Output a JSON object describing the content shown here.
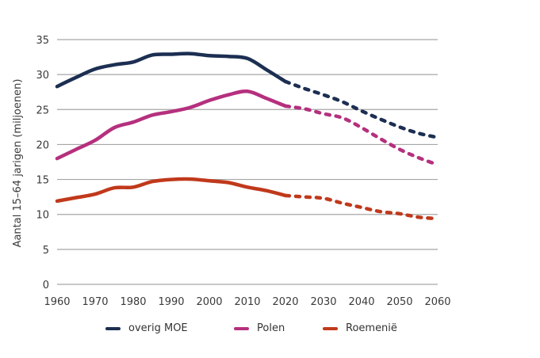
{
  "chart_data": {
    "type": "line",
    "title": "",
    "xlabel": "",
    "ylabel": "Aantal 15–64 jarigen (miljoenen)",
    "xlim": [
      1960,
      2060
    ],
    "ylim": [
      0,
      35
    ],
    "x_ticks": [
      "1960",
      "1970",
      "1980",
      "1990",
      "2000",
      "2010",
      "2020",
      "2030",
      "2040",
      "2050",
      "2060"
    ],
    "y_ticks": [
      "0",
      "5",
      "10",
      "15",
      "20",
      "25",
      "30",
      "35"
    ],
    "grid": true,
    "legend_position": "bottom",
    "projection_start": 2020,
    "x": [
      1960,
      1965,
      1970,
      1975,
      1980,
      1985,
      1990,
      1995,
      2000,
      2005,
      2010,
      2015,
      2020,
      2025,
      2030,
      2035,
      2040,
      2045,
      2050,
      2055,
      2060
    ],
    "series": [
      {
        "name": "overig MOE",
        "color": "#1c2f52",
        "values": [
          28.3,
          29.6,
          30.8,
          31.4,
          31.8,
          32.8,
          32.9,
          33.0,
          32.7,
          32.6,
          32.3,
          30.7,
          29.0,
          28.0,
          27.1,
          26.1,
          24.8,
          23.6,
          22.5,
          21.6,
          21.0
        ]
      },
      {
        "name": "Polen",
        "color": "#b5307e",
        "values": [
          18.0,
          19.3,
          20.6,
          22.4,
          23.2,
          24.2,
          24.7,
          25.3,
          26.3,
          27.1,
          27.6,
          26.6,
          25.5,
          25.1,
          24.4,
          23.8,
          22.4,
          20.8,
          19.3,
          18.1,
          17.1
        ]
      },
      {
        "name": "Roemenië",
        "color": "#c0391b",
        "values": [
          11.9,
          12.4,
          12.9,
          13.8,
          13.9,
          14.7,
          15.0,
          15.05,
          14.8,
          14.55,
          13.9,
          13.4,
          12.7,
          12.5,
          12.3,
          11.6,
          11.0,
          10.4,
          10.1,
          9.6,
          9.4
        ]
      }
    ]
  }
}
